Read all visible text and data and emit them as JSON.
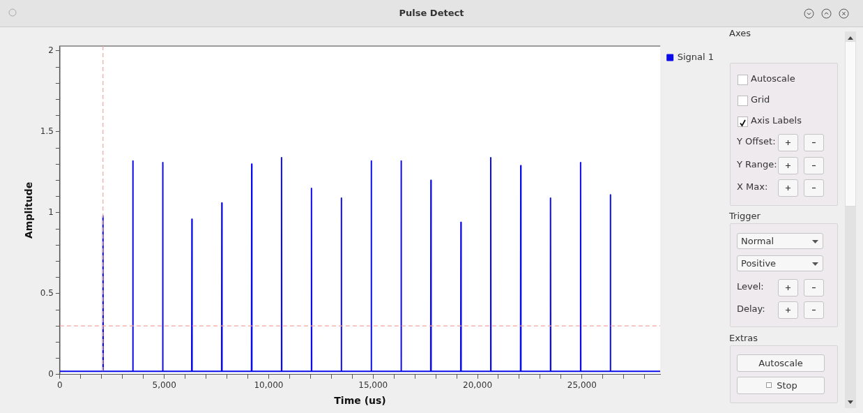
{
  "chart_data": {
    "type": "line",
    "title": "Pulse Detect",
    "xlabel": "Time (us)",
    "ylabel": "Amplitude",
    "xlim": [
      0,
      28750
    ],
    "ylim": [
      0,
      2.03
    ],
    "xticks": [
      0,
      {
        "value": 1000,
        "label": null
      },
      {
        "value": 2000,
        "label": null
      },
      {
        "value": 3000,
        "label": null
      },
      {
        "value": 4000,
        "label": null
      },
      {
        "value": 5000,
        "label": "5,000"
      },
      {
        "value": 6000,
        "label": null
      },
      {
        "value": 7000,
        "label": null
      },
      {
        "value": 8000,
        "label": null
      },
      {
        "value": 9000,
        "label": null
      },
      {
        "value": 10000,
        "label": "10,000"
      },
      {
        "value": 11000,
        "label": null
      },
      {
        "value": 12000,
        "label": null
      },
      {
        "value": 13000,
        "label": null
      },
      {
        "value": 14000,
        "label": null
      },
      {
        "value": 15000,
        "label": "15,000"
      },
      {
        "value": 16000,
        "label": null
      },
      {
        "value": 17000,
        "label": null
      },
      {
        "value": 18000,
        "label": null
      },
      {
        "value": 19000,
        "label": null
      },
      {
        "value": 20000,
        "label": "20,000"
      },
      {
        "value": 21000,
        "label": null
      },
      {
        "value": 22000,
        "label": null
      },
      {
        "value": 23000,
        "label": null
      },
      {
        "value": 24000,
        "label": null
      },
      {
        "value": 25000,
        "label": "25,000"
      },
      {
        "value": 26000,
        "label": null
      },
      {
        "value": 27000,
        "label": null
      },
      {
        "value": 28000,
        "label": null
      }
    ],
    "yticks": [
      0,
      {
        "value": 0.1,
        "label": null
      },
      {
        "value": 0.2,
        "label": null
      },
      {
        "value": 0.3,
        "label": null
      },
      {
        "value": 0.4,
        "label": null
      },
      0.5,
      {
        "value": 0.6,
        "label": null
      },
      {
        "value": 0.7,
        "label": null
      },
      {
        "value": 0.8,
        "label": null
      },
      {
        "value": 0.9,
        "label": null
      },
      1,
      {
        "value": 1.1,
        "label": null
      },
      {
        "value": 1.2,
        "label": null
      },
      {
        "value": 1.3,
        "label": null
      },
      {
        "value": 1.4,
        "label": null
      },
      1.5,
      {
        "value": 1.6,
        "label": null
      },
      {
        "value": 1.7,
        "label": null
      },
      {
        "value": 1.8,
        "label": null
      },
      {
        "value": 1.9,
        "label": null
      },
      2
    ],
    "grid": false,
    "legend": "top right",
    "marker": "none",
    "line_style": "solid",
    "series": [
      {
        "name": "Signal 1",
        "color": "#0b0be8",
        "x": [
          0,
          2055,
          2065,
          2075,
          3485,
          3495,
          3505,
          4915,
          4925,
          4935,
          6312,
          6322,
          6332,
          7745,
          7755,
          7765,
          9175,
          9185,
          9195,
          10605,
          10615,
          10625,
          12038,
          12048,
          12058,
          13468,
          13478,
          13488,
          14902,
          14912,
          14922,
          16332,
          16342,
          16352,
          17758,
          17768,
          17778,
          19195,
          19205,
          19215,
          20622,
          20632,
          20642,
          22059,
          22069,
          22079,
          23485,
          23495,
          23505,
          24925,
          24935,
          24945,
          26352,
          26362,
          26372,
          28750
        ],
        "values": [
          0.02,
          0.02,
          0.98,
          0.02,
          0.02,
          1.32,
          0.02,
          0.02,
          1.31,
          0.02,
          0.02,
          0.96,
          0.02,
          0.02,
          1.06,
          0.02,
          0.02,
          1.3,
          0.02,
          0.02,
          1.34,
          0.02,
          0.02,
          1.15,
          0.02,
          0.02,
          1.09,
          0.02,
          0.02,
          1.32,
          0.02,
          0.02,
          1.32,
          0.02,
          0.02,
          1.2,
          0.02,
          0.02,
          0.94,
          0.02,
          0.02,
          1.34,
          0.02,
          0.02,
          1.29,
          0.02,
          0.02,
          1.09,
          0.02,
          0.02,
          1.31,
          0.02,
          0.02,
          1.11,
          0.02,
          0.02
        ]
      }
    ],
    "ref_lines": [
      {
        "axis": "y",
        "value": 0.3,
        "color": "#f4a3a3",
        "line_style": "dashed"
      },
      {
        "axis": "x",
        "value": 2065,
        "color": "#f4a3a3",
        "line_style": "dashed"
      }
    ],
    "annotations": [
      "Axes",
      "Autoscale",
      "Grid",
      "Axis Labels",
      "Y Offset:",
      "Y Range:",
      "X Max:",
      "Trigger",
      "Normal",
      "Positive",
      "Level:",
      "Delay:",
      "Extras",
      "Autoscale",
      "Stop"
    ]
  }
}
